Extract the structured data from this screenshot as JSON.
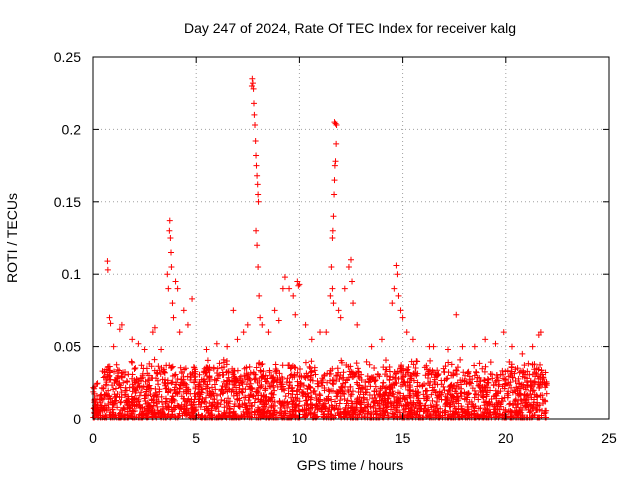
{
  "chart_data": {
    "type": "scatter",
    "title": "Day 247 of 2024, Rate Of TEC Index for receiver kalg",
    "xlabel": "GPS time / hours",
    "ylabel": "ROTI / TECUs",
    "xlim": [
      0,
      25
    ],
    "ylim": [
      0,
      0.25
    ],
    "x_ticks": [
      0,
      5,
      10,
      15,
      20,
      25
    ],
    "x_tick_labels": [
      "0",
      "5",
      "10",
      "15",
      "20",
      "25"
    ],
    "y_ticks": [
      0,
      0.05,
      0.1,
      0.15,
      0.2,
      0.25
    ],
    "y_tick_labels": [
      "0",
      "0.05",
      "0.1",
      "0.15",
      "0.2",
      "0.25"
    ],
    "grid": true,
    "marker": "+",
    "color": "#ff0000",
    "baseline_range": [
      0.0,
      22.0
    ],
    "series": [
      {
        "name": "ROTI",
        "points": [
          [
            0.7,
            0.109
          ],
          [
            0.72,
            0.103
          ],
          [
            0.8,
            0.07
          ],
          [
            0.85,
            0.066
          ],
          [
            1.0,
            0.05
          ],
          [
            1.3,
            0.062
          ],
          [
            1.4,
            0.065
          ],
          [
            1.9,
            0.055
          ],
          [
            2.2,
            0.052
          ],
          [
            2.5,
            0.048
          ],
          [
            2.9,
            0.06
          ],
          [
            3.0,
            0.063
          ],
          [
            3.3,
            0.048
          ],
          [
            3.6,
            0.1
          ],
          [
            3.65,
            0.09
          ],
          [
            3.7,
            0.13
          ],
          [
            3.72,
            0.137
          ],
          [
            3.75,
            0.125
          ],
          [
            3.78,
            0.115
          ],
          [
            3.8,
            0.105
          ],
          [
            3.85,
            0.08
          ],
          [
            3.9,
            0.07
          ],
          [
            4.0,
            0.095
          ],
          [
            4.1,
            0.09
          ],
          [
            4.2,
            0.06
          ],
          [
            4.4,
            0.075
          ],
          [
            4.6,
            0.065
          ],
          [
            4.8,
            0.083
          ],
          [
            5.5,
            0.048
          ],
          [
            6.0,
            0.052
          ],
          [
            6.5,
            0.05
          ],
          [
            6.8,
            0.075
          ],
          [
            7.0,
            0.055
          ],
          [
            7.3,
            0.06
          ],
          [
            7.5,
            0.065
          ],
          [
            7.7,
            0.23
          ],
          [
            7.72,
            0.235
          ],
          [
            7.75,
            0.232
          ],
          [
            7.78,
            0.228
          ],
          [
            7.8,
            0.218
          ],
          [
            7.82,
            0.21
          ],
          [
            7.85,
            0.203
          ],
          [
            7.88,
            0.192
          ],
          [
            7.9,
            0.182
          ],
          [
            7.92,
            0.175
          ],
          [
            7.95,
            0.168
          ],
          [
            7.98,
            0.162
          ],
          [
            8.0,
            0.155
          ],
          [
            8.02,
            0.15
          ],
          [
            7.9,
            0.13
          ],
          [
            7.95,
            0.12
          ],
          [
            8.0,
            0.105
          ],
          [
            8.05,
            0.085
          ],
          [
            8.1,
            0.07
          ],
          [
            8.2,
            0.065
          ],
          [
            8.5,
            0.06
          ],
          [
            8.8,
            0.075
          ],
          [
            9.0,
            0.068
          ],
          [
            9.2,
            0.09
          ],
          [
            9.3,
            0.098
          ],
          [
            9.5,
            0.09
          ],
          [
            9.7,
            0.085
          ],
          [
            9.8,
            0.072
          ],
          [
            9.9,
            0.095
          ],
          [
            9.95,
            0.092
          ],
          [
            10.0,
            0.093
          ],
          [
            10.3,
            0.065
          ],
          [
            10.6,
            0.055
          ],
          [
            11.0,
            0.06
          ],
          [
            11.3,
            0.06
          ],
          [
            11.5,
            0.085
          ],
          [
            11.55,
            0.105
          ],
          [
            11.6,
            0.125
          ],
          [
            11.62,
            0.13
          ],
          [
            11.65,
            0.14
          ],
          [
            11.68,
            0.155
          ],
          [
            11.7,
            0.165
          ],
          [
            11.72,
            0.175
          ],
          [
            11.75,
            0.178
          ],
          [
            11.78,
            0.19
          ],
          [
            11.8,
            0.203
          ],
          [
            11.7,
            0.205
          ],
          [
            11.75,
            0.204
          ],
          [
            11.6,
            0.09
          ],
          [
            11.65,
            0.08
          ],
          [
            11.9,
            0.075
          ],
          [
            12.0,
            0.07
          ],
          [
            12.2,
            0.09
          ],
          [
            12.4,
            0.105
          ],
          [
            12.5,
            0.11
          ],
          [
            12.55,
            0.095
          ],
          [
            12.6,
            0.08
          ],
          [
            12.8,
            0.065
          ],
          [
            13.5,
            0.05
          ],
          [
            14.0,
            0.055
          ],
          [
            14.5,
            0.08
          ],
          [
            14.6,
            0.09
          ],
          [
            14.7,
            0.106
          ],
          [
            14.75,
            0.1
          ],
          [
            14.8,
            0.085
          ],
          [
            14.9,
            0.075
          ],
          [
            15.0,
            0.07
          ],
          [
            15.2,
            0.06
          ],
          [
            15.5,
            0.055
          ],
          [
            16.3,
            0.05
          ],
          [
            16.5,
            0.05
          ],
          [
            17.2,
            0.048
          ],
          [
            17.6,
            0.072
          ],
          [
            17.9,
            0.05
          ],
          [
            18.5,
            0.05
          ],
          [
            19.0,
            0.055
          ],
          [
            19.5,
            0.052
          ],
          [
            19.9,
            0.06
          ],
          [
            20.3,
            0.05
          ],
          [
            20.8,
            0.045
          ],
          [
            21.3,
            0.05
          ],
          [
            21.6,
            0.058
          ],
          [
            21.7,
            0.06
          ]
        ]
      }
    ]
  }
}
